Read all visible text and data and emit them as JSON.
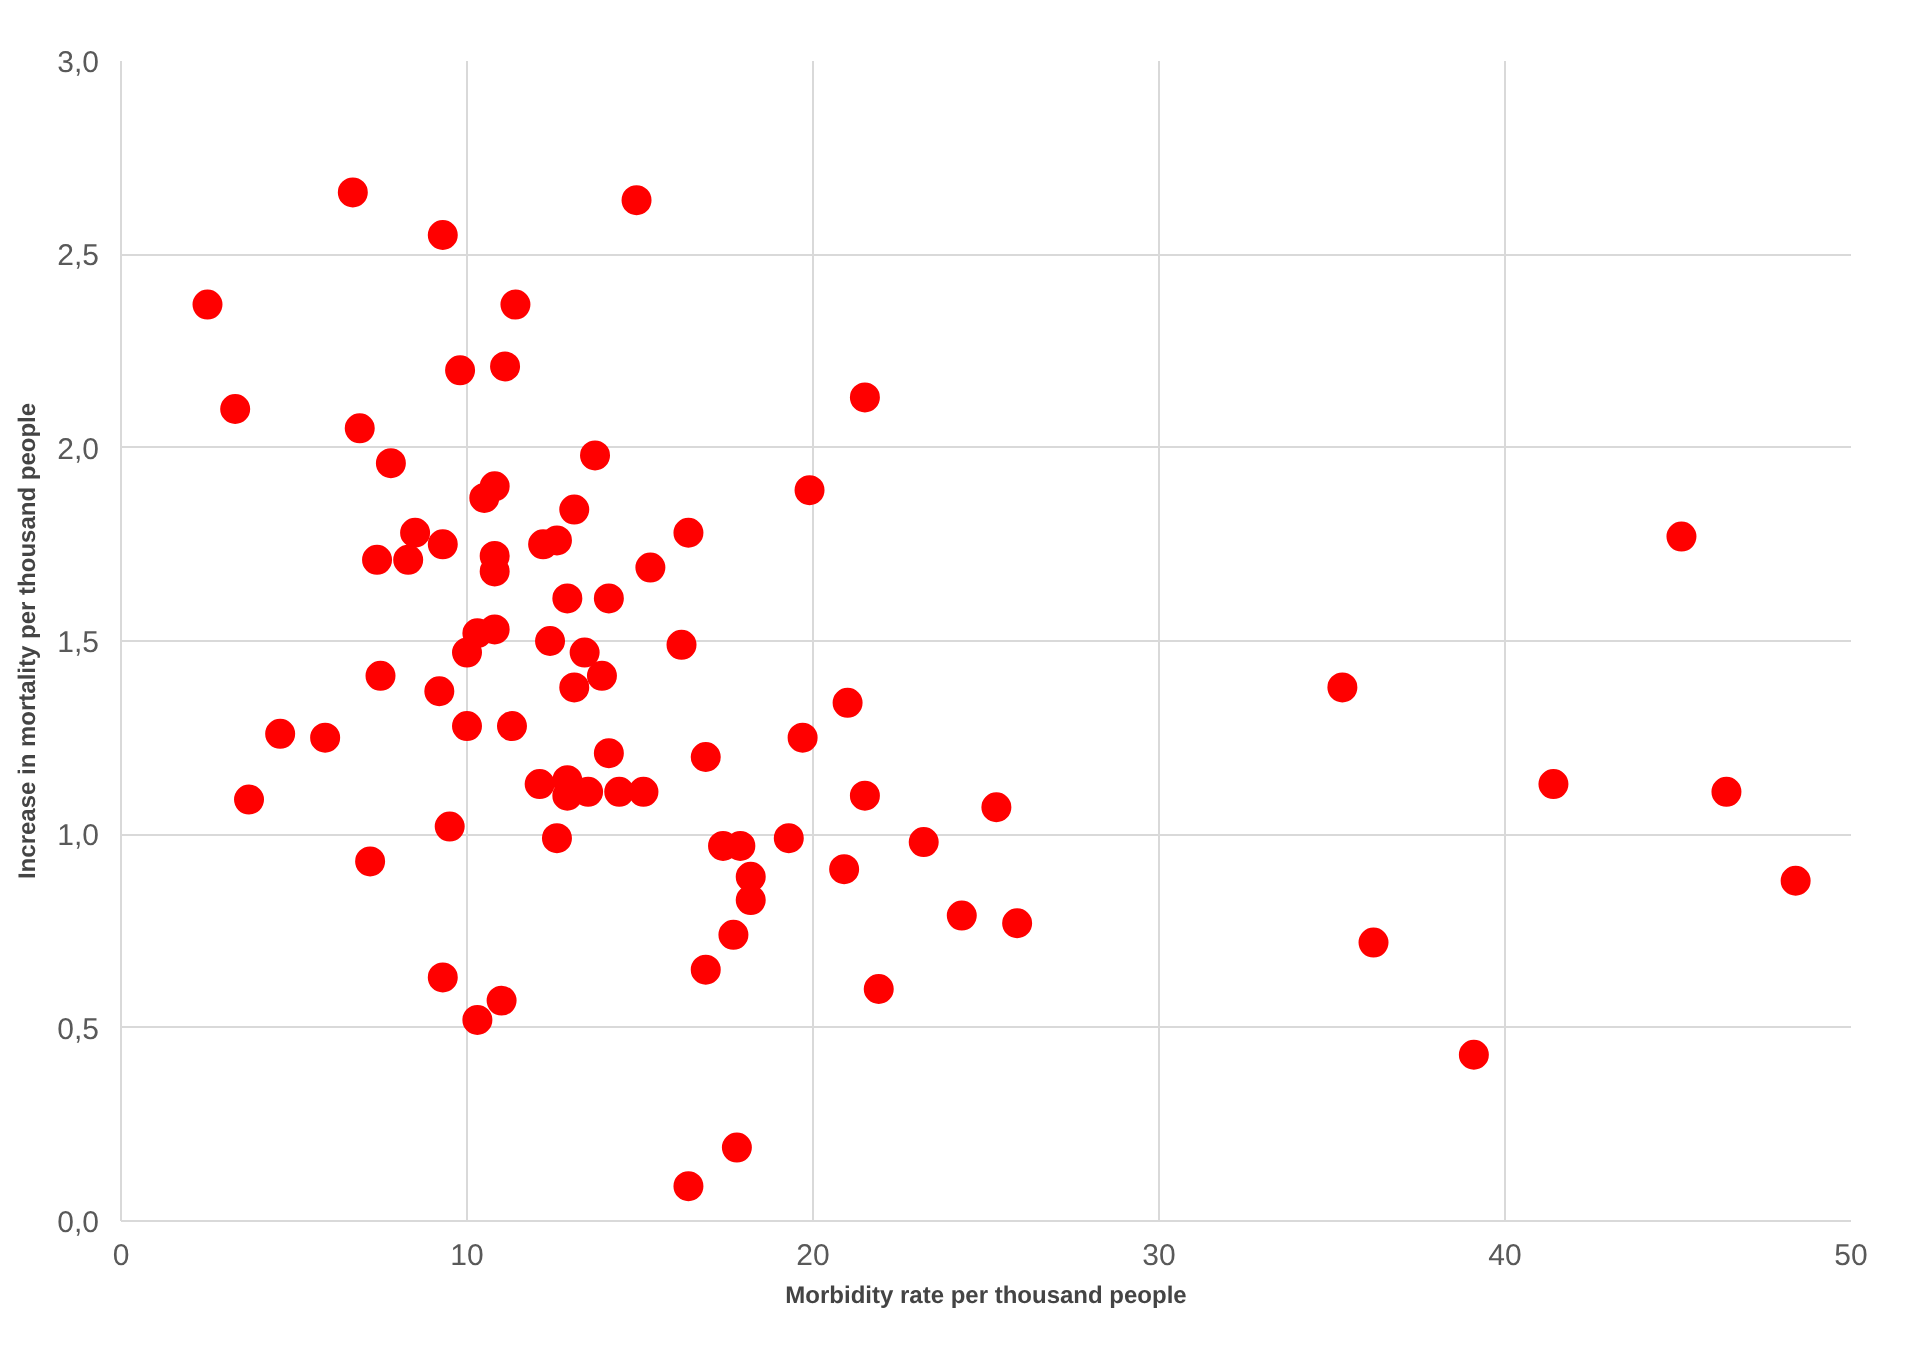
{
  "chart_data": {
    "type": "scatter",
    "xlabel": "Morbidity rate per thousand people",
    "ylabel": "Increase in mortality per thousand people",
    "x": [
      2.5,
      3.3,
      3.7,
      4.6,
      5.9,
      6.7,
      6.9,
      7.2,
      7.4,
      7.5,
      7.8,
      8.3,
      8.5,
      9.3,
      9.2,
      9.3,
      9.3,
      9.5,
      9.8,
      10.0,
      10.0,
      10.3,
      10.3,
      10.5,
      10.8,
      10.8,
      10.8,
      10.8,
      11.1,
      11.0,
      11.3,
      11.4,
      12.1,
      12.2,
      12.4,
      12.6,
      12.6,
      12.9,
      12.9,
      12.9,
      13.1,
      13.1,
      13.4,
      13.5,
      13.7,
      13.9,
      14.1,
      14.1,
      14.4,
      14.9,
      15.1,
      15.3,
      16.2,
      16.4,
      16.4,
      16.9,
      16.9,
      17.4,
      17.7,
      17.8,
      17.9,
      18.2,
      18.2,
      19.3,
      19.7,
      19.9,
      20.9,
      21.0,
      21.5,
      21.5,
      21.9,
      23.2,
      24.3,
      25.3,
      25.9,
      35.3,
      36.2,
      39.1,
      41.4,
      45.1,
      46.4,
      48.4
    ],
    "values": [
      2.37,
      2.1,
      1.09,
      1.26,
      1.25,
      2.66,
      2.05,
      0.93,
      1.71,
      1.41,
      1.96,
      1.71,
      1.78,
      1.75,
      1.37,
      2.55,
      0.63,
      1.02,
      2.2,
      1.47,
      1.28,
      0.52,
      1.52,
      1.87,
      1.9,
      1.68,
      1.72,
      1.53,
      2.21,
      0.57,
      1.28,
      2.37,
      1.13,
      1.75,
      1.5,
      1.76,
      0.99,
      1.1,
      1.14,
      1.61,
      1.38,
      1.84,
      1.47,
      1.11,
      1.98,
      1.41,
      1.61,
      1.21,
      1.11,
      2.64,
      1.11,
      1.69,
      1.49,
      1.78,
      0.09,
      0.65,
      1.2,
      0.97,
      0.74,
      0.19,
      0.97,
      0.83,
      0.89,
      0.99,
      1.25,
      1.89,
      0.91,
      1.34,
      2.13,
      1.1,
      0.6,
      0.98,
      0.79,
      1.07,
      0.77,
      1.38,
      0.72,
      0.43,
      1.13,
      1.77,
      1.11,
      0.88
    ],
    "color": "#ff0000",
    "marker": "circle",
    "xlim": [
      0,
      50
    ],
    "xticks": [
      0,
      10,
      20,
      30,
      40,
      50
    ],
    "ylim": [
      0,
      3
    ],
    "yticks": [
      {
        "value": 0,
        "label": "0,0"
      },
      {
        "value": 0.5,
        "label": "0,5"
      },
      {
        "value": 1,
        "label": "1,0"
      },
      {
        "value": 1.5,
        "label": "1,5"
      },
      {
        "value": 2,
        "label": "2,0"
      },
      {
        "value": 2.5,
        "label": "2,5"
      },
      {
        "value": 3,
        "label": "3,0"
      }
    ],
    "grid": true
  }
}
